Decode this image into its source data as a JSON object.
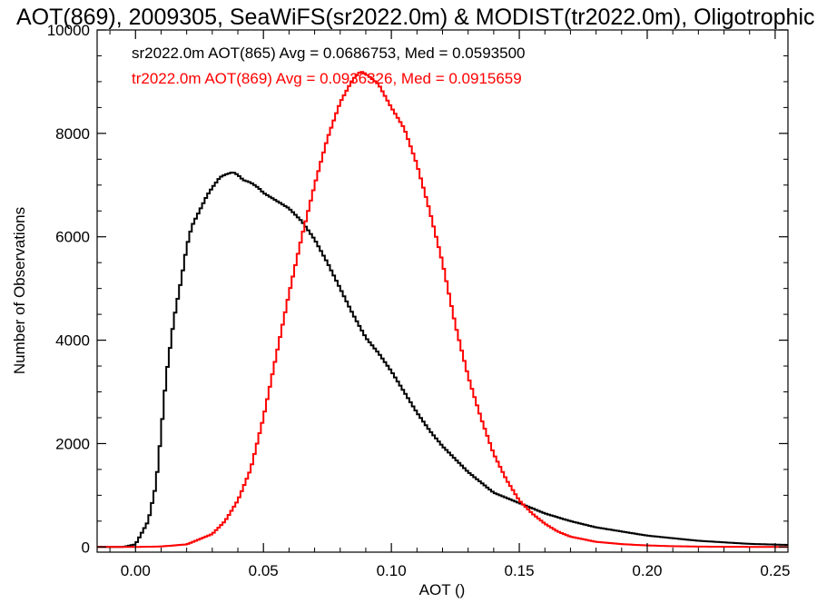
{
  "chart_data": {
    "type": "line",
    "title": "AOT(869), 2009305, SeaWiFS(sr2022.0m) & MODIST(tr2022.0m), Oligotrophic",
    "xlabel": "AOT ()",
    "ylabel": "Number of Observations",
    "xlim": [
      -0.015,
      0.255
    ],
    "ylim": [
      -100,
      10000
    ],
    "xticks": [
      "0.00",
      "0.05",
      "0.10",
      "0.15",
      "0.20",
      "0.25"
    ],
    "yticks": [
      "0",
      "2000",
      "4000",
      "6000",
      "8000",
      "10000"
    ],
    "grid": false,
    "legend_position": "top-left",
    "series": [
      {
        "name": "sr2022.0m AOT(865) Avg = 0.0686753, Med = 0.0593500",
        "color": "#000000",
        "x": [
          -0.015,
          -0.005,
          0.0,
          0.005,
          0.008,
          0.01,
          0.012,
          0.015,
          0.018,
          0.02,
          0.022,
          0.025,
          0.028,
          0.03,
          0.033,
          0.035,
          0.038,
          0.04,
          0.042,
          0.045,
          0.048,
          0.05,
          0.055,
          0.06,
          0.065,
          0.07,
          0.075,
          0.08,
          0.085,
          0.09,
          0.095,
          0.1,
          0.105,
          0.11,
          0.115,
          0.12,
          0.125,
          0.13,
          0.135,
          0.14,
          0.145,
          0.15,
          0.155,
          0.16,
          0.17,
          0.18,
          0.19,
          0.2,
          0.21,
          0.22,
          0.23,
          0.24,
          0.255
        ],
        "y": [
          0,
          0,
          50,
          500,
          1200,
          2200,
          3300,
          4400,
          5200,
          5800,
          6200,
          6500,
          6800,
          6950,
          7150,
          7200,
          7250,
          7200,
          7100,
          7050,
          6950,
          6850,
          6700,
          6550,
          6300,
          5950,
          5500,
          5000,
          4500,
          4050,
          3750,
          3400,
          3000,
          2600,
          2250,
          1950,
          1700,
          1450,
          1250,
          1050,
          950,
          850,
          750,
          650,
          500,
          380,
          300,
          220,
          170,
          120,
          90,
          60,
          40
        ]
      },
      {
        "name": "tr2022.0m AOT(869) Avg = 0.0936326, Med = 0.0915659",
        "color": "#ff0000",
        "x": [
          -0.015,
          0.0,
          0.01,
          0.02,
          0.025,
          0.03,
          0.035,
          0.04,
          0.045,
          0.05,
          0.055,
          0.06,
          0.065,
          0.07,
          0.075,
          0.08,
          0.085,
          0.088,
          0.09,
          0.095,
          0.1,
          0.105,
          0.11,
          0.115,
          0.12,
          0.125,
          0.13,
          0.135,
          0.14,
          0.145,
          0.15,
          0.155,
          0.16,
          0.165,
          0.17,
          0.18,
          0.19,
          0.2,
          0.21,
          0.22,
          0.23,
          0.24,
          0.255
        ],
        "y": [
          0,
          0,
          10,
          50,
          150,
          250,
          500,
          900,
          1500,
          2500,
          3700,
          4900,
          6000,
          7000,
          7900,
          8600,
          9050,
          9200,
          9150,
          8950,
          8500,
          8100,
          7400,
          6500,
          5500,
          4300,
          3300,
          2500,
          1800,
          1300,
          900,
          650,
          450,
          300,
          200,
          100,
          55,
          30,
          15,
          8,
          4,
          2,
          1
        ]
      }
    ]
  }
}
